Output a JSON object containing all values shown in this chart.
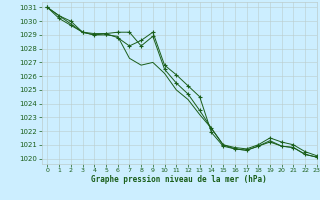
{
  "line1_x": [
    0,
    1,
    2,
    3,
    4,
    5,
    6,
    7,
    8,
    9,
    10,
    11,
    12,
    13,
    14,
    15,
    16,
    17,
    18,
    19,
    20,
    21,
    22,
    23
  ],
  "line1_y": [
    1031,
    1030.4,
    1030.0,
    1029.2,
    1029.0,
    1029.1,
    1029.2,
    1029.2,
    1028.2,
    1028.9,
    1026.5,
    1025.5,
    1024.7,
    1023.5,
    1022.2,
    1021.0,
    1020.8,
    1020.7,
    1021.0,
    1021.5,
    1021.2,
    1021.0,
    1020.5,
    1020.2
  ],
  "line2_x": [
    0,
    1,
    2,
    3,
    4,
    5,
    6,
    7,
    8,
    9,
    10,
    11,
    12,
    13,
    14,
    15,
    16,
    17,
    18,
    19,
    20,
    21,
    22,
    23
  ],
  "line2_y": [
    1031,
    1030.4,
    1029.8,
    1029.2,
    1029.0,
    1029.0,
    1028.9,
    1027.3,
    1026.8,
    1027.0,
    1026.2,
    1025.0,
    1024.3,
    1023.2,
    1022.2,
    1021.0,
    1020.7,
    1020.6,
    1020.9,
    1021.3,
    1020.9,
    1020.8,
    1020.3,
    1020.1
  ],
  "line3_x": [
    0,
    1,
    2,
    3,
    4,
    5,
    6,
    7,
    8,
    9,
    10,
    11,
    12,
    13,
    14,
    15,
    16,
    17,
    18,
    19,
    20,
    21,
    22,
    23
  ],
  "line3_y": [
    1031,
    1030.2,
    1029.7,
    1029.2,
    1029.1,
    1029.1,
    1028.8,
    1028.2,
    1028.6,
    1029.2,
    1026.8,
    1026.1,
    1025.3,
    1024.5,
    1021.9,
    1020.9,
    1020.7,
    1020.6,
    1020.9,
    1021.2,
    1020.9,
    1020.8,
    1020.3,
    1020.1
  ],
  "background_color": "#cceeff",
  "grid_color": "#bbcccc",
  "line_color": "#1a5e1a",
  "xlabel": "Graphe pression niveau de la mer (hPa)",
  "ylim": [
    1019.6,
    1031.4
  ],
  "xlim": [
    -0.5,
    23
  ],
  "yticks": [
    1020,
    1021,
    1022,
    1023,
    1024,
    1025,
    1026,
    1027,
    1028,
    1029,
    1030,
    1031
  ],
  "xticks": [
    0,
    1,
    2,
    3,
    4,
    5,
    6,
    7,
    8,
    9,
    10,
    11,
    12,
    13,
    14,
    15,
    16,
    17,
    18,
    19,
    20,
    21,
    22,
    23
  ],
  "xtick_labels": [
    "0",
    "1",
    "2",
    "3",
    "4",
    "5",
    "6",
    "7",
    "8",
    "9",
    "10",
    "11",
    "12",
    "13",
    "14",
    "15",
    "16",
    "17",
    "18",
    "19",
    "20",
    "21",
    "22",
    "23"
  ]
}
